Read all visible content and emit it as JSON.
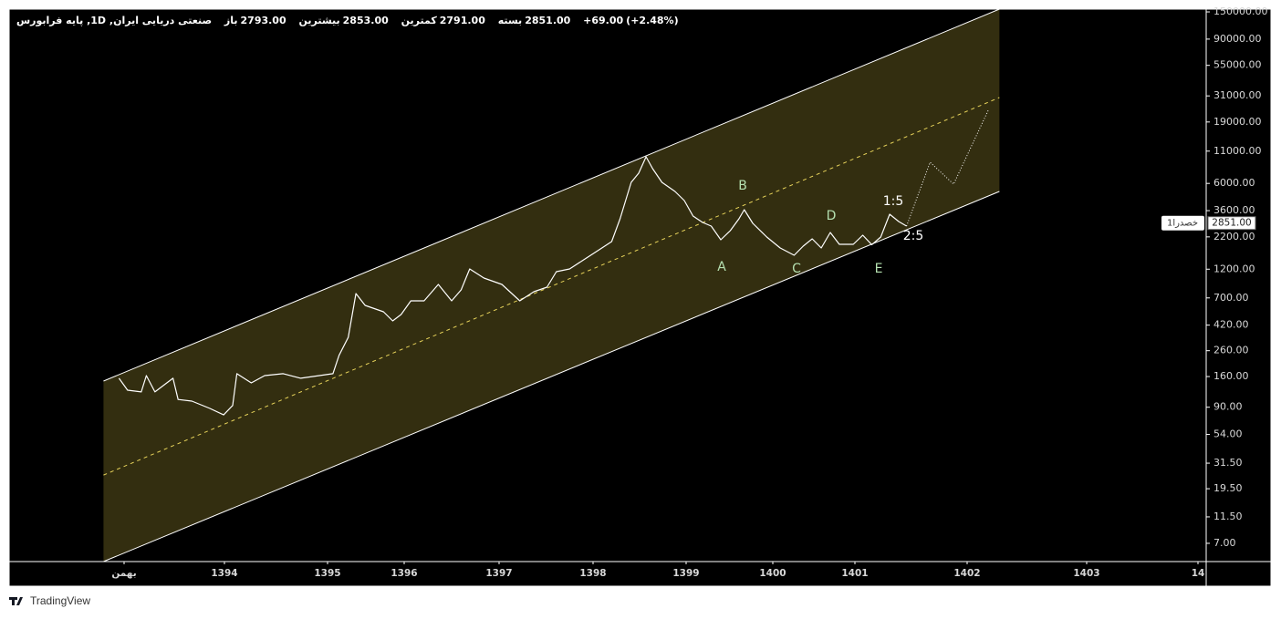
{
  "header": {
    "symbol": "صنعتی دریایی ایران, 1D, پایه فرابورس",
    "ohlc": [
      {
        "label": "باز",
        "value": "2793.00"
      },
      {
        "label": "بیشترین",
        "value": "2853.00"
      },
      {
        "label": "کمترین",
        "value": "2791.00"
      },
      {
        "label": "بسته",
        "value": "2851.00"
      }
    ],
    "change": "+69.00",
    "change_pct": "(+2.48%)"
  },
  "chart_data": {
    "type": "line",
    "ylog": true,
    "grid": false,
    "ylim": [
      4.97,
      158000
    ],
    "yticks": [
      {
        "value": 150000,
        "label": "150000.00"
      },
      {
        "value": 90000,
        "label": "90000.00"
      },
      {
        "value": 55000,
        "label": "55000.00"
      },
      {
        "value": 31000,
        "label": "31000.00"
      },
      {
        "value": 19000,
        "label": "19000.00"
      },
      {
        "value": 11000,
        "label": "11000.00"
      },
      {
        "value": 6000,
        "label": "6000.00"
      },
      {
        "value": 3600,
        "label": "3600.00"
      },
      {
        "value": 2200,
        "label": "2200.00"
      },
      {
        "value": 1200,
        "label": "1200.00"
      },
      {
        "value": 700,
        "label": "700.00"
      },
      {
        "value": 420,
        "label": "420.00"
      },
      {
        "value": 260,
        "label": "260.00"
      },
      {
        "value": 160,
        "label": "160.00"
      },
      {
        "value": 90,
        "label": "90.00"
      },
      {
        "value": 54,
        "label": "54.00"
      },
      {
        "value": 31.5,
        "label": "31.50"
      },
      {
        "value": 19.5,
        "label": "19.50"
      },
      {
        "value": 11.5,
        "label": "11.50"
      },
      {
        "value": 7,
        "label": "7.00"
      }
    ],
    "xlim": [
      1391.49,
      1404.07
    ],
    "xticks": [
      {
        "value": 1392.83,
        "label": "بهمن"
      },
      1394,
      1395,
      1396,
      1397,
      1398,
      1399,
      1400,
      1401,
      1402,
      1403,
      {
        "value": 1404,
        "label": "14"
      }
    ],
    "x": [
      1392.77,
      1392.87,
      1393.03,
      1393.09,
      1393.19,
      1393.4,
      1393.46,
      1393.62,
      1393.83,
      1393.99,
      1394.08,
      1394.12,
      1394.26,
      1394.39,
      1394.57,
      1394.74,
      1394.92,
      1395.07,
      1395.15,
      1395.27,
      1395.37,
      1395.49,
      1395.73,
      1395.85,
      1395.96,
      1396.07,
      1396.21,
      1396.36,
      1396.5,
      1396.6,
      1396.69,
      1396.84,
      1397.03,
      1397.22,
      1397.37,
      1397.51,
      1397.61,
      1397.75,
      1397.9,
      1398.05,
      1398.2,
      1398.29,
      1398.41,
      1398.49,
      1398.57,
      1398.64,
      1398.74,
      1398.88,
      1398.98,
      1399.08,
      1399.19,
      1399.29,
      1399.4,
      1399.51,
      1399.61,
      1399.67,
      1399.77,
      1399.93,
      1400.09,
      1400.26,
      1400.37,
      1400.48,
      1400.59,
      1400.7,
      1400.81,
      1400.98,
      1401.07,
      1401.15,
      1401.23,
      1401.31,
      1401.39,
      1401.46,
      1401.67,
      1401.88,
      1402.18
    ],
    "series": [
      {
        "color": "#ffffff",
        "style": "solid",
        "values": [
          155,
          124,
          120,
          163,
          120,
          155,
          104,
          101,
          88,
          78,
          93,
          169,
          142,
          163,
          169,
          155,
          163,
          169,
          238,
          334,
          760,
          608,
          540,
          455,
          513,
          663,
          663,
          902,
          663,
          813,
          1206,
          1016,
          902,
          663,
          786,
          857,
          1146,
          1206,
          1431,
          1698,
          2015,
          3090,
          6125,
          7266,
          9891,
          7918,
          6125,
          5163,
          4351,
          3253,
          2886,
          2694,
          2085,
          2474,
          3090,
          3668,
          2837,
          2195,
          1788,
          1558,
          1850,
          2121,
          1788,
          2391,
          1914,
          1914,
          2271,
          1900,
          2195,
          3367,
          2936,
          2694,
          null,
          null,
          null
        ]
      },
      {
        "color": "#ffffff",
        "style": "dotted",
        "values": [
          null,
          null,
          null,
          null,
          null,
          null,
          null,
          null,
          null,
          null,
          null,
          null,
          null,
          null,
          null,
          null,
          null,
          null,
          null,
          null,
          null,
          null,
          null,
          null,
          null,
          null,
          null,
          null,
          null,
          null,
          null,
          null,
          null,
          null,
          null,
          null,
          null,
          null,
          null,
          null,
          null,
          null,
          null,
          null,
          null,
          null,
          null,
          null,
          null,
          null,
          null,
          null,
          null,
          null,
          null,
          null,
          null,
          null,
          null,
          null,
          null,
          null,
          null,
          null,
          null,
          null,
          null,
          null,
          null,
          null,
          null,
          2694,
          8927,
          5919,
          24075
        ]
      }
    ],
    "channel": {
      "x": [
        1392.59,
        1402.27
      ],
      "upper": [
        147,
        158000
      ],
      "middle": [
        25.2,
        30070
      ],
      "lower": [
        4.97,
        5163
      ],
      "fill": "#332e10",
      "line_color": "#ffffff",
      "middle_color": "#e6d25a"
    },
    "annotations": [
      "A",
      "B",
      "C",
      "D",
      "E",
      "1:5",
      "2:5"
    ],
    "last_price": {
      "value": 2851,
      "label": "2851.00"
    },
    "symbol_tag": "خصدرا1"
  },
  "footer": {
    "brand": "TradingView"
  }
}
